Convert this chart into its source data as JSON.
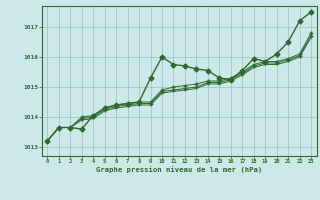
{
  "title": "Graphe pression niveau de la mer (hPa)",
  "background_color": "#cce8e8",
  "plot_bg_color": "#cce8e8",
  "grid_color": "#9abfbf",
  "line_color": "#2d6a2d",
  "xlim": [
    -0.5,
    23.5
  ],
  "ylim": [
    1012.7,
    1017.7
  ],
  "yticks": [
    1013,
    1014,
    1015,
    1016,
    1017
  ],
  "xticks": [
    0,
    1,
    2,
    3,
    4,
    5,
    6,
    7,
    8,
    9,
    10,
    11,
    12,
    13,
    14,
    15,
    16,
    17,
    18,
    19,
    20,
    21,
    22,
    23
  ],
  "series": [
    {
      "y": [
        1013.2,
        1013.65,
        1013.65,
        1013.6,
        1014.05,
        1014.3,
        1014.4,
        1014.45,
        1014.5,
        1015.3,
        1016.0,
        1015.75,
        1015.7,
        1015.6,
        1015.55,
        1015.3,
        1015.25,
        1015.55,
        1015.95,
        1015.85,
        1016.1,
        1016.5,
        1017.2,
        1017.5
      ],
      "marker": "D",
      "markersize": 2.5,
      "linewidth": 1.0
    },
    {
      "y": [
        1013.2,
        1013.65,
        1013.65,
        1014.0,
        1014.05,
        1014.3,
        1014.4,
        1014.45,
        1014.5,
        1014.5,
        1014.9,
        1015.0,
        1015.05,
        1015.1,
        1015.2,
        1015.2,
        1015.3,
        1015.5,
        1015.75,
        1015.85,
        1015.85,
        1015.95,
        1016.1,
        1016.8
      ],
      "marker": "+",
      "markersize": 3.0,
      "linewidth": 0.7
    },
    {
      "y": [
        1013.2,
        1013.65,
        1013.65,
        1013.95,
        1014.0,
        1014.25,
        1014.35,
        1014.4,
        1014.45,
        1014.45,
        1014.85,
        1014.9,
        1014.95,
        1015.0,
        1015.15,
        1015.15,
        1015.25,
        1015.45,
        1015.7,
        1015.8,
        1015.8,
        1015.9,
        1016.05,
        1016.7
      ],
      "marker": "+",
      "markersize": 2.5,
      "linewidth": 0.7
    },
    {
      "y": [
        1013.2,
        1013.65,
        1013.65,
        1013.9,
        1013.95,
        1014.2,
        1014.3,
        1014.35,
        1014.4,
        1014.4,
        1014.8,
        1014.85,
        1014.9,
        1014.95,
        1015.1,
        1015.1,
        1015.2,
        1015.4,
        1015.65,
        1015.75,
        1015.75,
        1015.85,
        1016.0,
        1016.65
      ],
      "marker": null,
      "markersize": 0,
      "linewidth": 0.7
    }
  ]
}
